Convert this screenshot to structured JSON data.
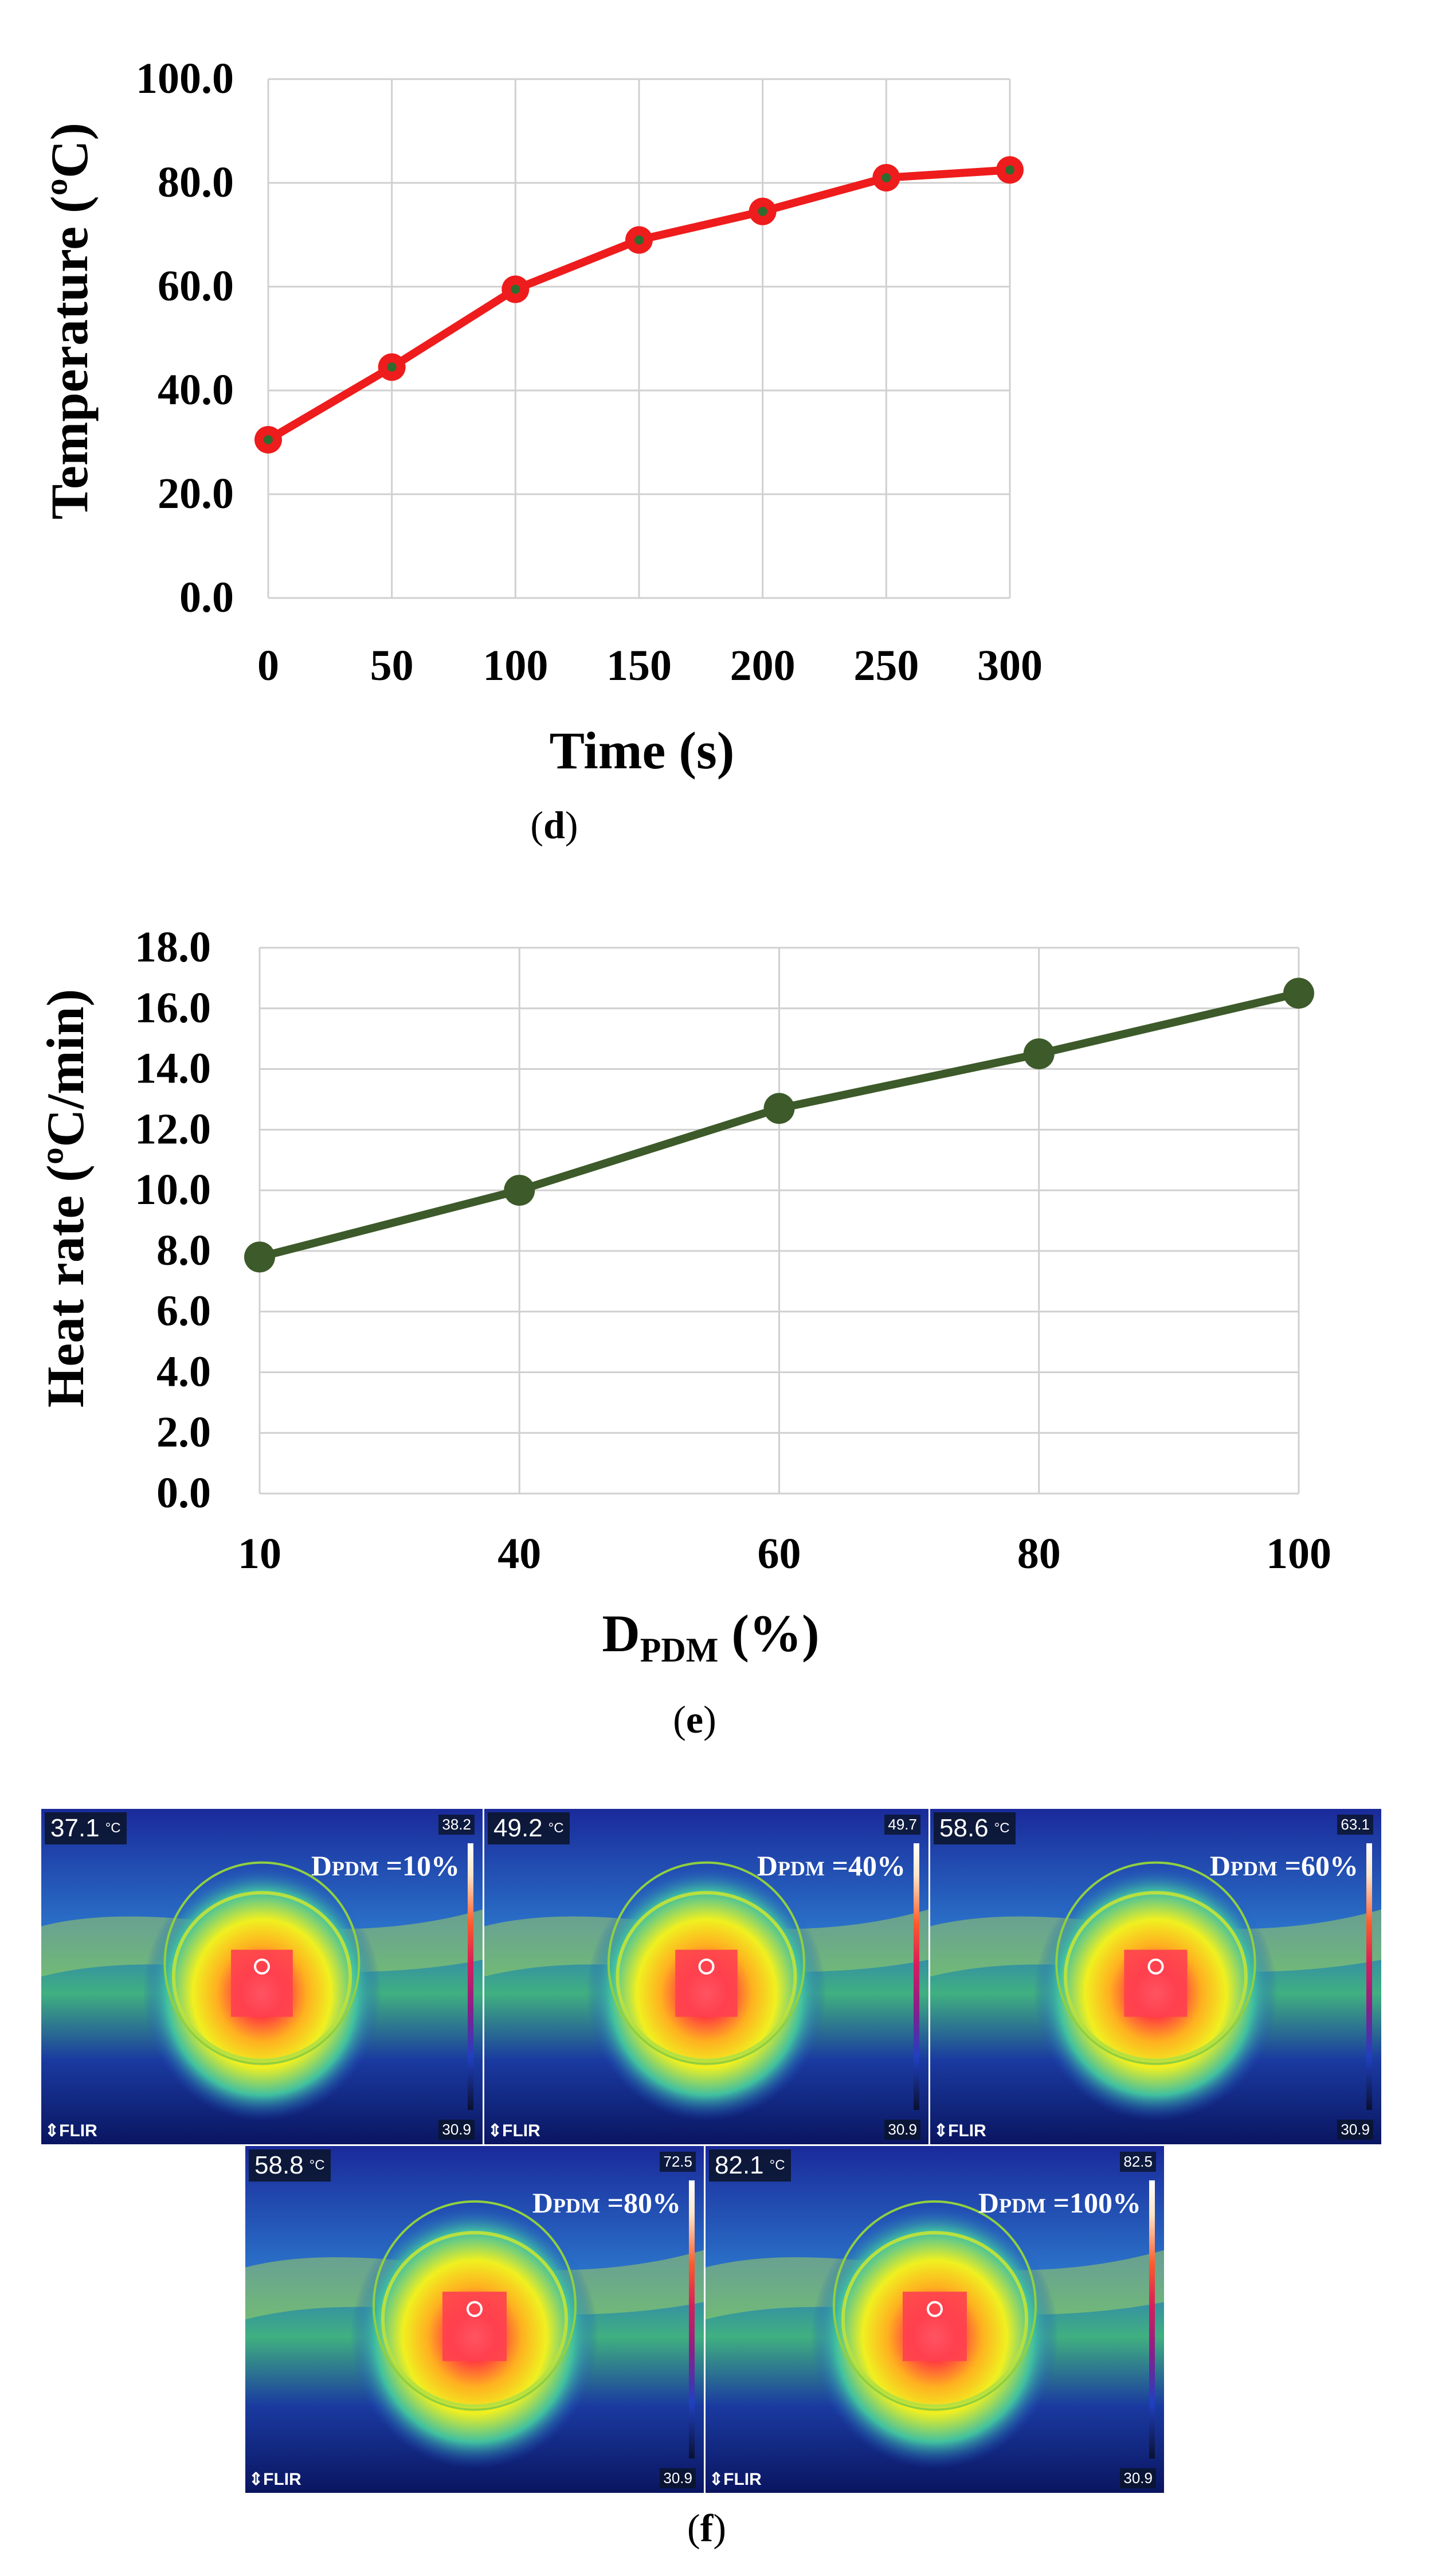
{
  "chart_data": [
    {
      "type": "line",
      "panel": "d",
      "caption_label": "d",
      "x": [
        0,
        50,
        100,
        150,
        200,
        250,
        300
      ],
      "x_tick_labels": [
        "0",
        "50",
        "100",
        "150",
        "200",
        "250",
        "300"
      ],
      "y": [
        30.5,
        44.5,
        59.5,
        69.0,
        74.5,
        81.0,
        82.5
      ],
      "y_tick_labels": [
        "0.0",
        "20.0",
        "40.0",
        "60.0",
        "80.0",
        "100.0"
      ],
      "xlabel": "Time (s)",
      "ylabel": "Temperature (ºC)",
      "ylim": [
        0,
        100
      ],
      "xlim": [
        0,
        300
      ],
      "grid": true,
      "line_color": "#ee1c1c",
      "marker_color": "#ee1c1c",
      "marker_center_color": "#2e6b2e"
    },
    {
      "type": "line",
      "panel": "e",
      "caption_label": "e",
      "categories": [
        "10",
        "40",
        "60",
        "80",
        "100"
      ],
      "values": [
        7.8,
        10.0,
        12.7,
        14.5,
        16.5
      ],
      "y_tick_labels": [
        "0.0",
        "2.0",
        "4.0",
        "6.0",
        "8.0",
        "10.0",
        "12.0",
        "14.0",
        "16.0",
        "18.0"
      ],
      "xlabel_main": "D",
      "xlabel_sub": "PDM",
      "xlabel_unit": " (%)",
      "ylabel": "Heat rate (ºC/min)",
      "ylim": [
        0,
        18
      ],
      "grid": true,
      "line_color": "#3d5a2a",
      "marker_color": "#3d5a2a"
    }
  ],
  "thermal_panel": {
    "caption_label": "f",
    "images": [
      {
        "temp": "37.1",
        "unit": "°C",
        "max": "38.2",
        "min": "30.9",
        "brand": "⇕FLIR",
        "label_main": "D",
        "label_sub": "PDM",
        "label_value": " =10%"
      },
      {
        "temp": "49.2",
        "unit": "°C",
        "max": "49.7",
        "min": "30.9",
        "brand": "⇕FLIR",
        "label_main": "D",
        "label_sub": "PDM",
        "label_value": " =40%"
      },
      {
        "temp": "58.6",
        "unit": "°C",
        "max": "63.1",
        "min": "30.9",
        "brand": "⇕FLIR",
        "label_main": "D",
        "label_sub": "PDM",
        "label_value": " =60%"
      },
      {
        "temp": "58.8",
        "unit": "°C",
        "max": "72.5",
        "min": "30.9",
        "brand": "⇕FLIR",
        "label_main": "D",
        "label_sub": "PDM",
        "label_value": " =80%"
      },
      {
        "temp": "82.1",
        "unit": "°C",
        "max": "82.5",
        "min": "30.9",
        "brand": "⇕FLIR",
        "label_main": "D",
        "label_sub": "PDM",
        "label_value": " =100%"
      }
    ]
  }
}
